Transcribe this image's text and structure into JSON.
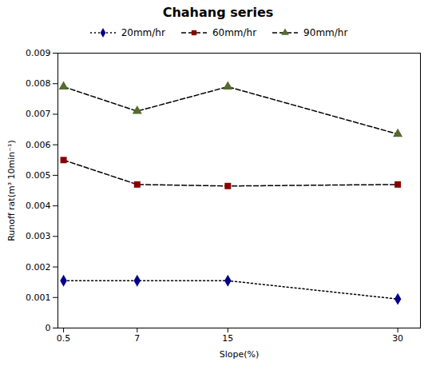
{
  "chart_data": {
    "type": "line",
    "title": "Chahang series",
    "xlabel": "Slope(%)",
    "ylabel": "Runoff rat(m³ 10min⁻¹)",
    "x": [
      0.5,
      7,
      15,
      30
    ],
    "series": [
      {
        "name": "20mm/hr",
        "color": "#00008B",
        "marker": "diamond",
        "line_style": "dotted",
        "values": [
          0.00155,
          0.00155,
          0.00155,
          0.00095
        ]
      },
      {
        "name": "60mm/hr",
        "color": "#8B0000",
        "marker": "square",
        "line_style": "dashed",
        "values": [
          0.0055,
          0.0047,
          0.00465,
          0.0047
        ]
      },
      {
        "name": "90mm/hr",
        "color": "#556B2F",
        "marker": "triangle",
        "line_style": "dashed",
        "values": [
          0.0079,
          0.0071,
          0.0079,
          0.00635
        ]
      }
    ],
    "xlim": [
      0,
      32
    ],
    "xticks": [
      0.5,
      7,
      15,
      30
    ],
    "ylim": [
      0,
      0.009
    ],
    "yticks": [
      0,
      0.001,
      0.002,
      0.003,
      0.004,
      0.005,
      0.006,
      0.007,
      0.008,
      0.009
    ],
    "grid": false,
    "legend": "top"
  }
}
